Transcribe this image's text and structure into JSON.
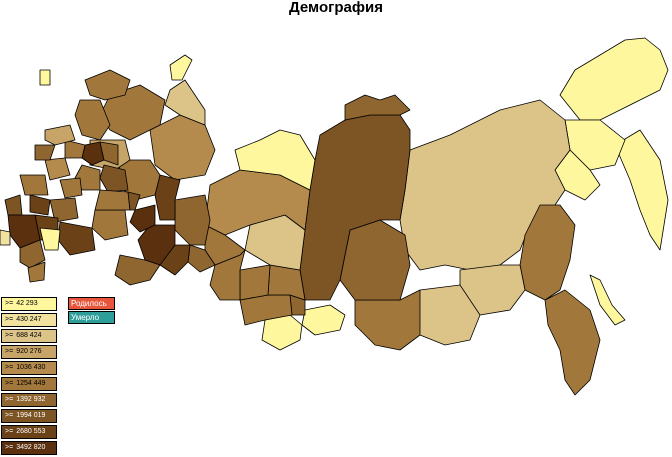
{
  "title": "Демография",
  "legend": [
    {
      "label": "42 293",
      "color": "#fff79e"
    },
    {
      "label": "430 247",
      "color": "#f2e2a0"
    },
    {
      "label": "688 424",
      "color": "#dcc388"
    },
    {
      "label": "920 276",
      "color": "#c7a468"
    },
    {
      "label": "1036 430",
      "color": "#b58b4d"
    },
    {
      "label": "1254 449",
      "color": "#a1773b"
    },
    {
      "label": "1392 932",
      "color": "#8f6630"
    },
    {
      "label": "1994 019",
      "color": "#7d5424"
    },
    {
      "label": "2680 553",
      "color": "#6b4217"
    },
    {
      "label": "3492 820",
      "color": "#5a300e"
    }
  ],
  "legend_arrow": ">=",
  "buttons": {
    "born_label": "Родилось",
    "died_label": "Умерло"
  },
  "colors": {
    "born": "#e8553a",
    "died": "#2e9e9a",
    "border": "#000000"
  }
}
